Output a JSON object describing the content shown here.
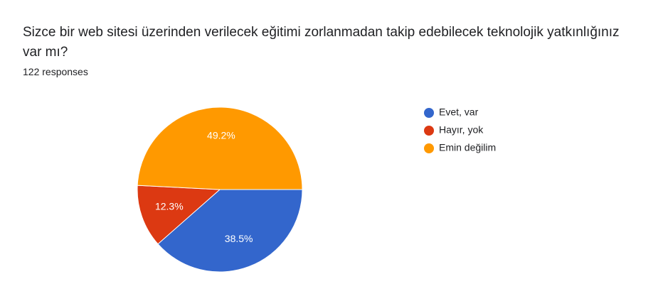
{
  "chart_data": {
    "type": "pie",
    "title": "Sizce bir web sitesi üzerinden verilecek eğitimi zorlanmadan takip edebilecek teknolojik yatkınlığınız var mı?",
    "subtitle": "122 responses",
    "categories": [
      "Evet, var",
      "Hayır, yok",
      "Emin değilim"
    ],
    "values": [
      38.5,
      12.3,
      49.2
    ],
    "value_labels": [
      "38.5%",
      "12.3%",
      "49.2%"
    ],
    "colors": [
      "#3366cc",
      "#dc3912",
      "#ff9900"
    ],
    "legend": "right"
  }
}
